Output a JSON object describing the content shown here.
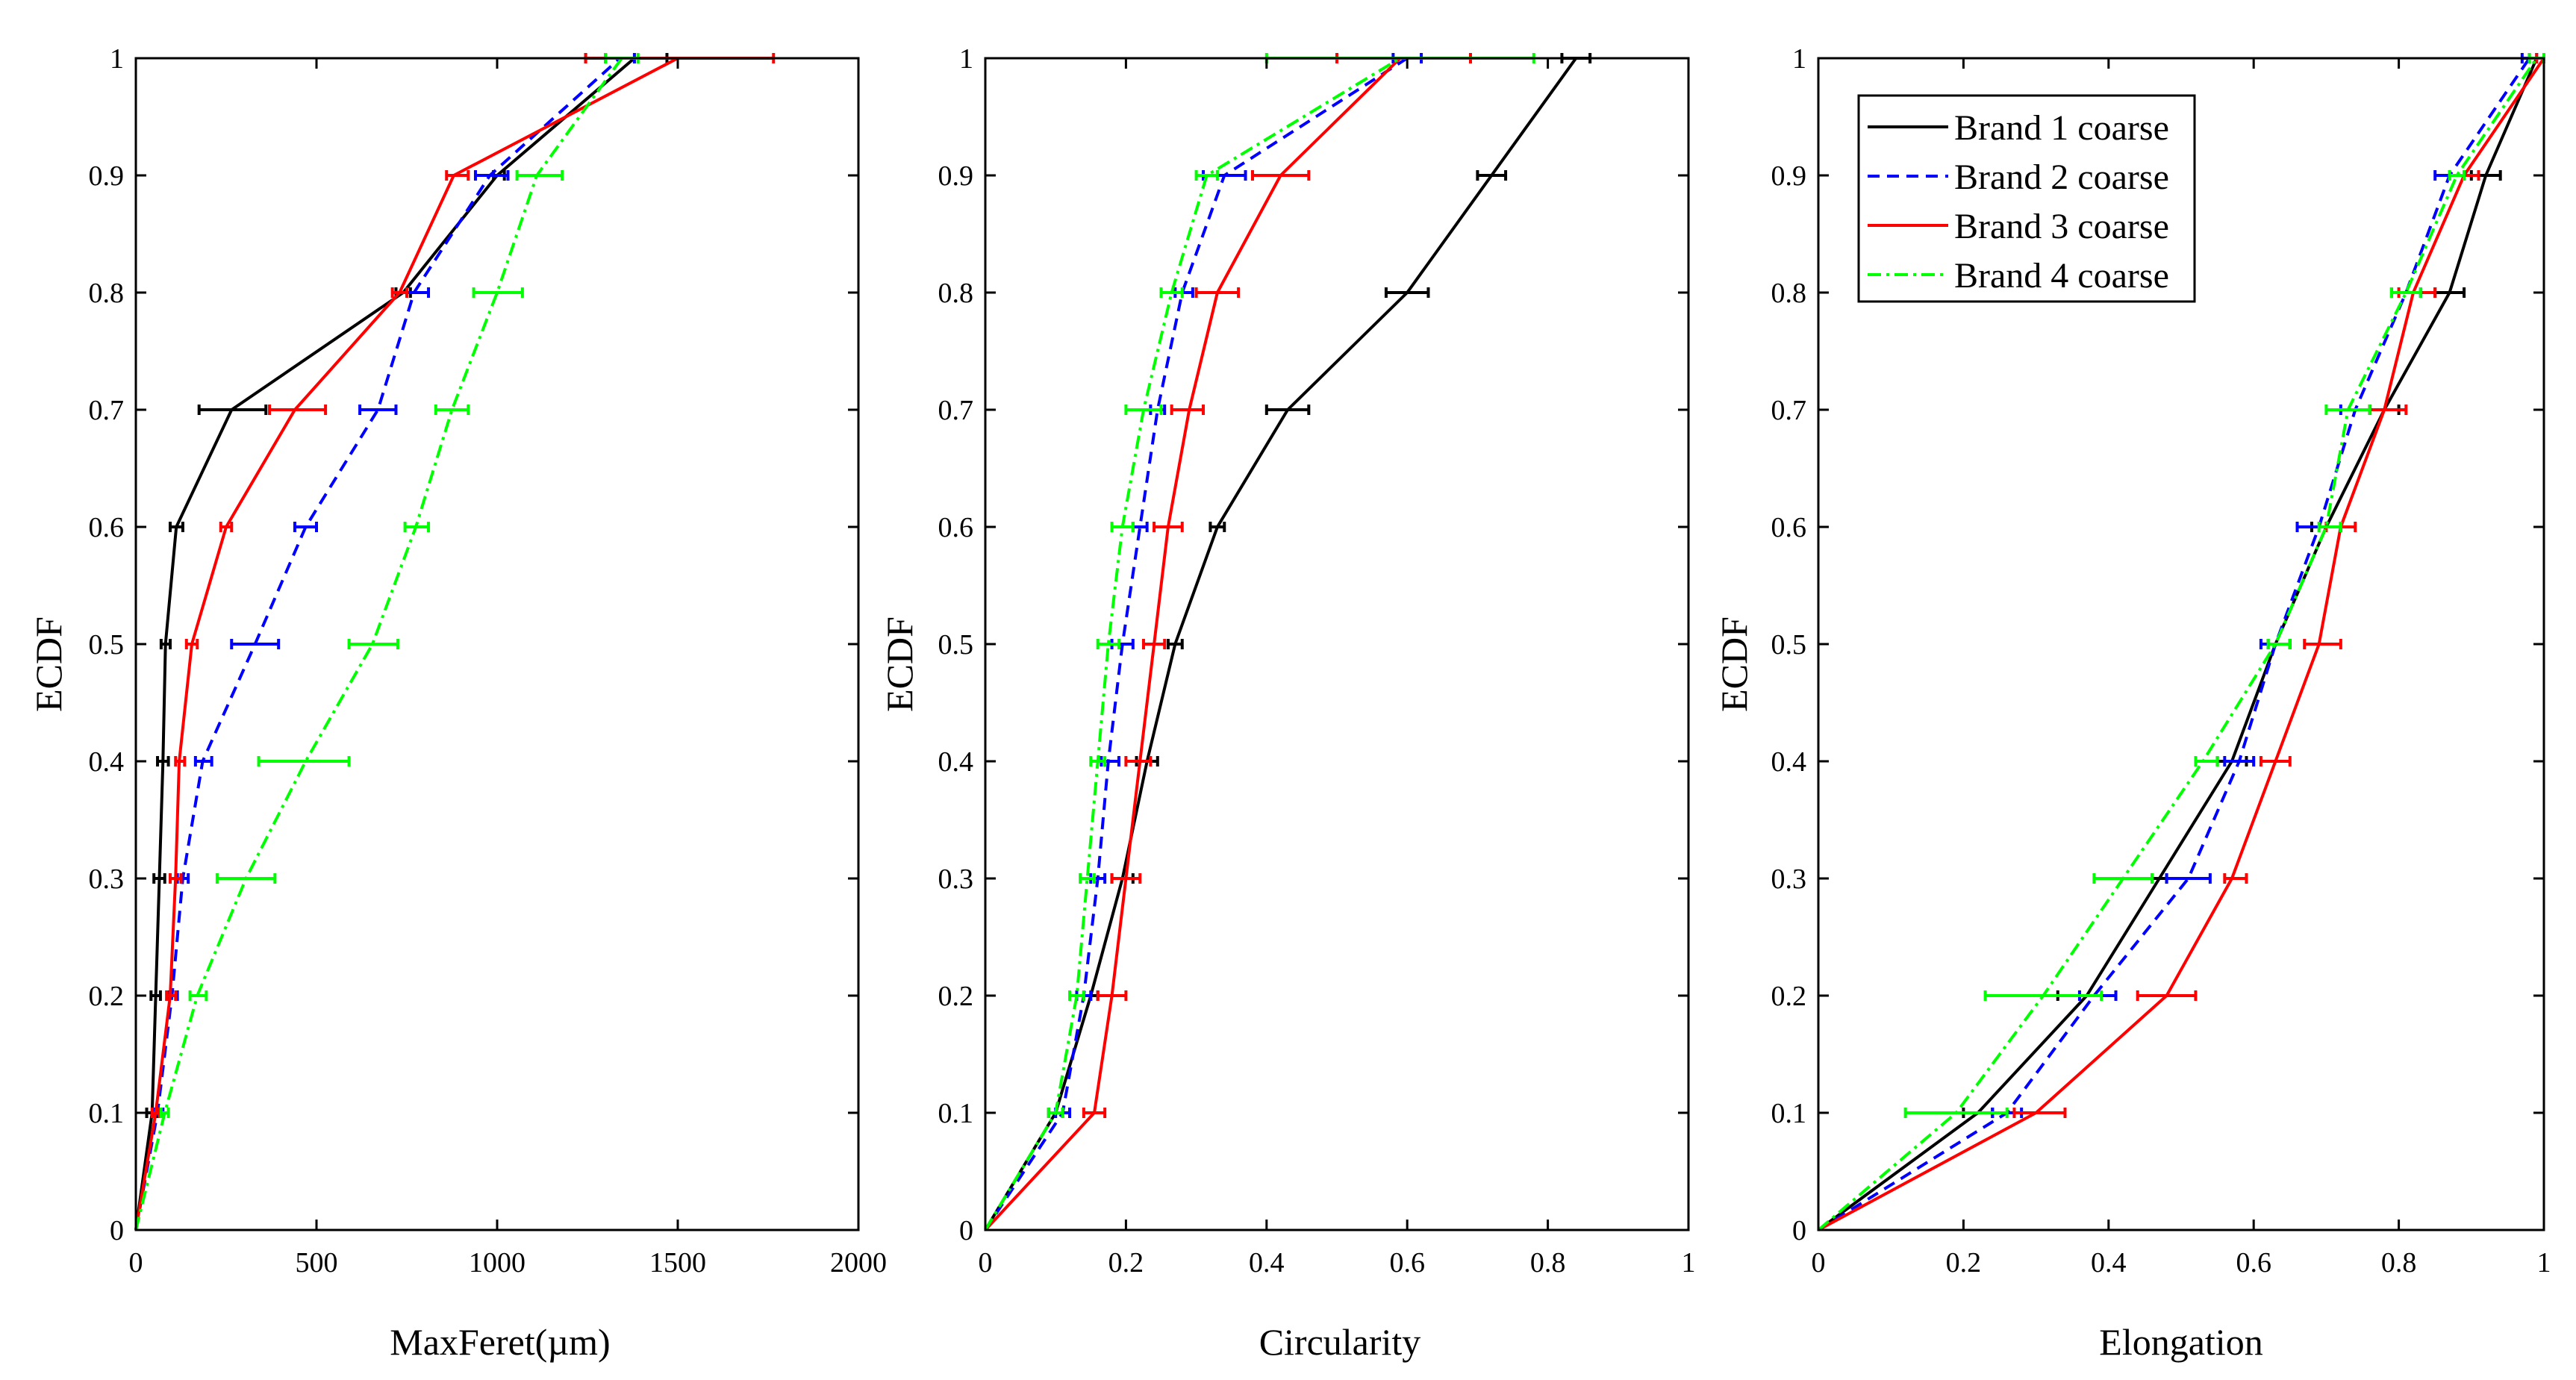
{
  "chart_data": [
    {
      "type": "line",
      "xlabel": "MaxFeret(µm)",
      "ylabel": "ECDF",
      "xlim": [
        0,
        2000
      ],
      "ylim": [
        0,
        1
      ],
      "xticks": [
        0,
        500,
        1000,
        1500,
        2000
      ],
      "xtick_labels": [
        "0",
        "500",
        "1000",
        "1500",
        "2000"
      ],
      "yticks": [
        0,
        0.1,
        0.2,
        0.3,
        0.4,
        0.5,
        0.6,
        0.7,
        0.8,
        0.9,
        1
      ],
      "ytick_labels": [
        "0",
        "0.1",
        "0.2",
        "0.3",
        "0.4",
        "0.5",
        "0.6",
        "0.7",
        "0.8",
        "0.9",
        "1"
      ],
      "series": [
        {
          "name": "Brand 1 coarse",
          "color": "#000000",
          "style": "solid",
          "x": [
            0,
            45,
            55,
            65,
            75,
            82,
            112,
            265,
            740,
            1000,
            1380
          ],
          "xerr_low": [
            0,
            30,
            42,
            50,
            60,
            70,
            95,
            175,
            720,
            990,
            1245
          ],
          "xerr_high": [
            0,
            60,
            68,
            80,
            90,
            95,
            130,
            360,
            760,
            1020,
            1470
          ],
          "y": [
            0,
            0.1,
            0.2,
            0.3,
            0.4,
            0.5,
            0.6,
            0.7,
            0.8,
            0.9,
            1
          ]
        },
        {
          "name": "Brand 2 coarse",
          "color": "#0000ff",
          "style": "dashed",
          "x": [
            0,
            60,
            100,
            130,
            185,
            330,
            470,
            670,
            770,
            980,
            1340
          ],
          "xerr_low": [
            0,
            50,
            90,
            115,
            165,
            265,
            440,
            620,
            750,
            940,
            1300
          ],
          "xerr_high": [
            0,
            75,
            115,
            145,
            210,
            395,
            500,
            720,
            810,
            1030,
            1380
          ],
          "y": [
            0,
            0.1,
            0.2,
            0.3,
            0.4,
            0.5,
            0.6,
            0.7,
            0.8,
            0.9,
            1
          ]
        },
        {
          "name": "Brand 3 coarse",
          "color": "#ff0000",
          "style": "solid",
          "x": [
            0,
            55,
            95,
            110,
            120,
            155,
            250,
            440,
            730,
            880,
            1500
          ],
          "xerr_low": [
            0,
            45,
            85,
            95,
            110,
            140,
            235,
            370,
            710,
            860,
            1245
          ],
          "xerr_high": [
            0,
            65,
            110,
            125,
            135,
            170,
            265,
            525,
            750,
            920,
            1765
          ],
          "y": [
            0,
            0.1,
            0.2,
            0.3,
            0.4,
            0.5,
            0.6,
            0.7,
            0.8,
            0.9,
            1
          ]
        },
        {
          "name": "Brand 4 coarse",
          "color": "#00ff00",
          "style": "dashdot",
          "x": [
            0,
            80,
            170,
            305,
            470,
            655,
            775,
            875,
            1000,
            1110,
            1345
          ],
          "xerr_low": [
            0,
            70,
            150,
            225,
            340,
            590,
            745,
            830,
            935,
            1055,
            1300
          ],
          "xerr_high": [
            0,
            90,
            195,
            385,
            590,
            725,
            810,
            920,
            1070,
            1180,
            1390
          ],
          "y": [
            0,
            0.1,
            0.2,
            0.3,
            0.4,
            0.5,
            0.6,
            0.7,
            0.8,
            0.9,
            1
          ]
        }
      ]
    },
    {
      "type": "line",
      "xlabel": "Circularity",
      "ylabel": "ECDF",
      "xlim": [
        0,
        1
      ],
      "ylim": [
        0,
        1
      ],
      "xticks": [
        0,
        0.2,
        0.4,
        0.6,
        0.8,
        1
      ],
      "xtick_labels": [
        "0",
        "0.2",
        "0.4",
        "0.6",
        "0.8",
        "1"
      ],
      "yticks": [
        0,
        0.1,
        0.2,
        0.3,
        0.4,
        0.5,
        0.6,
        0.7,
        0.8,
        0.9,
        1
      ],
      "ytick_labels": [
        "0",
        "0.1",
        "0.2",
        "0.3",
        "0.4",
        "0.5",
        "0.6",
        "0.7",
        "0.8",
        "0.9",
        "1"
      ],
      "series": [
        {
          "name": "Brand 1 coarse",
          "color": "#000000",
          "style": "solid",
          "x": [
            0,
            0.1,
            0.15,
            0.195,
            0.23,
            0.27,
            0.33,
            0.43,
            0.6,
            0.72,
            0.84
          ],
          "xerr_low": [
            0,
            0.09,
            0.14,
            0.18,
            0.215,
            0.26,
            0.32,
            0.4,
            0.57,
            0.7,
            0.82
          ],
          "xerr_high": [
            0,
            0.11,
            0.16,
            0.21,
            0.245,
            0.28,
            0.34,
            0.46,
            0.63,
            0.74,
            0.86
          ],
          "y": [
            0,
            0.1,
            0.2,
            0.3,
            0.4,
            0.5,
            0.6,
            0.7,
            0.8,
            0.9,
            1
          ]
        },
        {
          "name": "Brand 2 coarse",
          "color": "#0000ff",
          "style": "dashed",
          "x": [
            0,
            0.11,
            0.14,
            0.16,
            0.175,
            0.195,
            0.22,
            0.245,
            0.28,
            0.34,
            0.6
          ],
          "xerr_low": [
            0,
            0.1,
            0.13,
            0.15,
            0.165,
            0.18,
            0.21,
            0.235,
            0.27,
            0.31,
            0.58
          ],
          "xerr_high": [
            0,
            0.12,
            0.15,
            0.17,
            0.19,
            0.21,
            0.23,
            0.255,
            0.295,
            0.37,
            0.62
          ],
          "y": [
            0,
            0.1,
            0.2,
            0.3,
            0.4,
            0.5,
            0.6,
            0.7,
            0.8,
            0.9,
            1
          ]
        },
        {
          "name": "Brand 3 coarse",
          "color": "#ff0000",
          "style": "solid",
          "x": [
            0,
            0.155,
            0.18,
            0.2,
            0.22,
            0.24,
            0.26,
            0.29,
            0.33,
            0.42,
            0.59
          ],
          "xerr_low": [
            0,
            0.14,
            0.16,
            0.18,
            0.2,
            0.225,
            0.24,
            0.265,
            0.3,
            0.38,
            0.5
          ],
          "xerr_high": [
            0,
            0.17,
            0.2,
            0.22,
            0.235,
            0.255,
            0.28,
            0.31,
            0.36,
            0.46,
            0.69
          ],
          "y": [
            0,
            0.1,
            0.2,
            0.3,
            0.4,
            0.5,
            0.6,
            0.7,
            0.8,
            0.9,
            1
          ]
        },
        {
          "name": "Brand 4 coarse",
          "color": "#00ff00",
          "style": "dashdot",
          "x": [
            0,
            0.1,
            0.13,
            0.145,
            0.16,
            0.175,
            0.195,
            0.225,
            0.265,
            0.315,
            0.59
          ],
          "xerr_low": [
            0,
            0.09,
            0.12,
            0.135,
            0.15,
            0.16,
            0.18,
            0.2,
            0.25,
            0.3,
            0.4
          ],
          "xerr_high": [
            0,
            0.11,
            0.14,
            0.155,
            0.17,
            0.19,
            0.21,
            0.25,
            0.28,
            0.33,
            0.78
          ],
          "y": [
            0,
            0.1,
            0.2,
            0.3,
            0.4,
            0.5,
            0.6,
            0.7,
            0.8,
            0.9,
            1
          ]
        }
      ]
    },
    {
      "type": "line",
      "xlabel": "Elongation",
      "ylabel": "ECDF",
      "xlim": [
        0,
        1
      ],
      "ylim": [
        0,
        1
      ],
      "xticks": [
        0,
        0.2,
        0.4,
        0.6,
        0.8,
        1
      ],
      "xtick_labels": [
        "0",
        "0.2",
        "0.4",
        "0.6",
        "0.8",
        "1"
      ],
      "yticks": [
        0,
        0.1,
        0.2,
        0.3,
        0.4,
        0.5,
        0.6,
        0.7,
        0.8,
        0.9,
        1
      ],
      "ytick_labels": [
        "0",
        "0.1",
        "0.2",
        "0.3",
        "0.4",
        "0.5",
        "0.6",
        "0.7",
        "0.8",
        "0.9",
        "1"
      ],
      "legend_location": "top-left",
      "series": [
        {
          "name": "Brand 1 coarse",
          "color": "#000000",
          "style": "solid",
          "x": [
            0,
            0.22,
            0.37,
            0.47,
            0.57,
            0.63,
            0.7,
            0.78,
            0.87,
            0.92,
            0.99
          ],
          "xerr_low": [
            0,
            0.2,
            0.33,
            0.46,
            0.55,
            0.62,
            0.68,
            0.76,
            0.85,
            0.9,
            0.98
          ],
          "xerr_high": [
            0,
            0.24,
            0.41,
            0.48,
            0.59,
            0.65,
            0.72,
            0.8,
            0.89,
            0.94,
            1.0
          ],
          "y": [
            0,
            0.1,
            0.2,
            0.3,
            0.4,
            0.5,
            0.6,
            0.7,
            0.8,
            0.9,
            1
          ]
        },
        {
          "name": "Brand 2 coarse",
          "color": "#0000ff",
          "style": "dashed",
          "x": [
            0,
            0.26,
            0.38,
            0.51,
            0.58,
            0.63,
            0.69,
            0.74,
            0.81,
            0.87,
            0.98
          ],
          "xerr_low": [
            0,
            0.24,
            0.36,
            0.48,
            0.56,
            0.61,
            0.66,
            0.72,
            0.79,
            0.85,
            0.97
          ],
          "xerr_high": [
            0,
            0.28,
            0.41,
            0.54,
            0.6,
            0.65,
            0.72,
            0.76,
            0.83,
            0.89,
            0.99
          ],
          "y": [
            0,
            0.1,
            0.2,
            0.3,
            0.4,
            0.5,
            0.6,
            0.7,
            0.8,
            0.9,
            1
          ]
        },
        {
          "name": "Brand 3 coarse",
          "color": "#ff0000",
          "style": "solid",
          "x": [
            0,
            0.3,
            0.48,
            0.57,
            0.63,
            0.69,
            0.72,
            0.78,
            0.82,
            0.89,
            1.0
          ],
          "xerr_low": [
            0,
            0.27,
            0.44,
            0.56,
            0.61,
            0.67,
            0.7,
            0.76,
            0.8,
            0.87,
            0.99
          ],
          "xerr_high": [
            0,
            0.34,
            0.52,
            0.59,
            0.65,
            0.72,
            0.74,
            0.81,
            0.85,
            0.91,
            1.0
          ],
          "y": [
            0,
            0.1,
            0.2,
            0.3,
            0.4,
            0.5,
            0.6,
            0.7,
            0.8,
            0.9,
            1
          ]
        },
        {
          "name": "Brand 4 coarse",
          "color": "#00ff00",
          "style": "dashdot",
          "x": [
            0,
            0.19,
            0.31,
            0.42,
            0.53,
            0.63,
            0.7,
            0.73,
            0.81,
            0.88,
            0.99
          ],
          "xerr_low": [
            0,
            0.12,
            0.23,
            0.38,
            0.52,
            0.62,
            0.69,
            0.7,
            0.79,
            0.87,
            0.98
          ],
          "xerr_high": [
            0,
            0.26,
            0.39,
            0.46,
            0.55,
            0.65,
            0.72,
            0.76,
            0.83,
            0.89,
            1.0
          ],
          "y": [
            0,
            0.1,
            0.2,
            0.3,
            0.4,
            0.5,
            0.6,
            0.7,
            0.8,
            0.9,
            1
          ]
        }
      ]
    }
  ]
}
